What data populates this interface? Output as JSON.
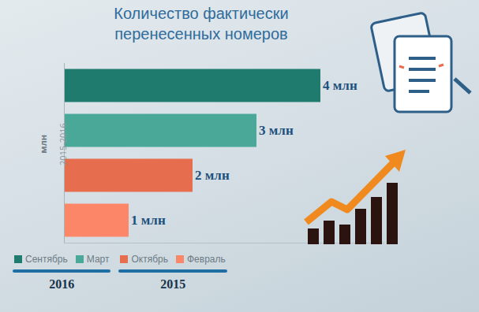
{
  "chart_data": {
    "type": "bar",
    "orientation": "horizontal",
    "title": "Количество фактически\nперенесенных номеров",
    "ylabel": "млн",
    "annotations": [
      "2015-2016"
    ],
    "categories": [
      "Сентябрь",
      "Март",
      "Октябрь",
      "Февраль"
    ],
    "values": [
      4,
      3,
      2,
      1
    ],
    "value_labels": [
      "4 млн",
      "3 млн",
      "2 млн",
      "1 млн"
    ],
    "colors": [
      "#1e7b6e",
      "#4aa899",
      "#e66e4f",
      "#fc8668"
    ],
    "data_labels": true,
    "tick_labels": false,
    "grid": false,
    "xlim": [
      0,
      5
    ],
    "xticks": [],
    "legend": "bottom-left",
    "groups": [
      {
        "name": "2016",
        "categories": [
          "Сентябрь",
          "Март"
        ]
      },
      {
        "name": "2015",
        "categories": [
          "Октябрь",
          "Февраль"
        ]
      }
    ]
  }
}
